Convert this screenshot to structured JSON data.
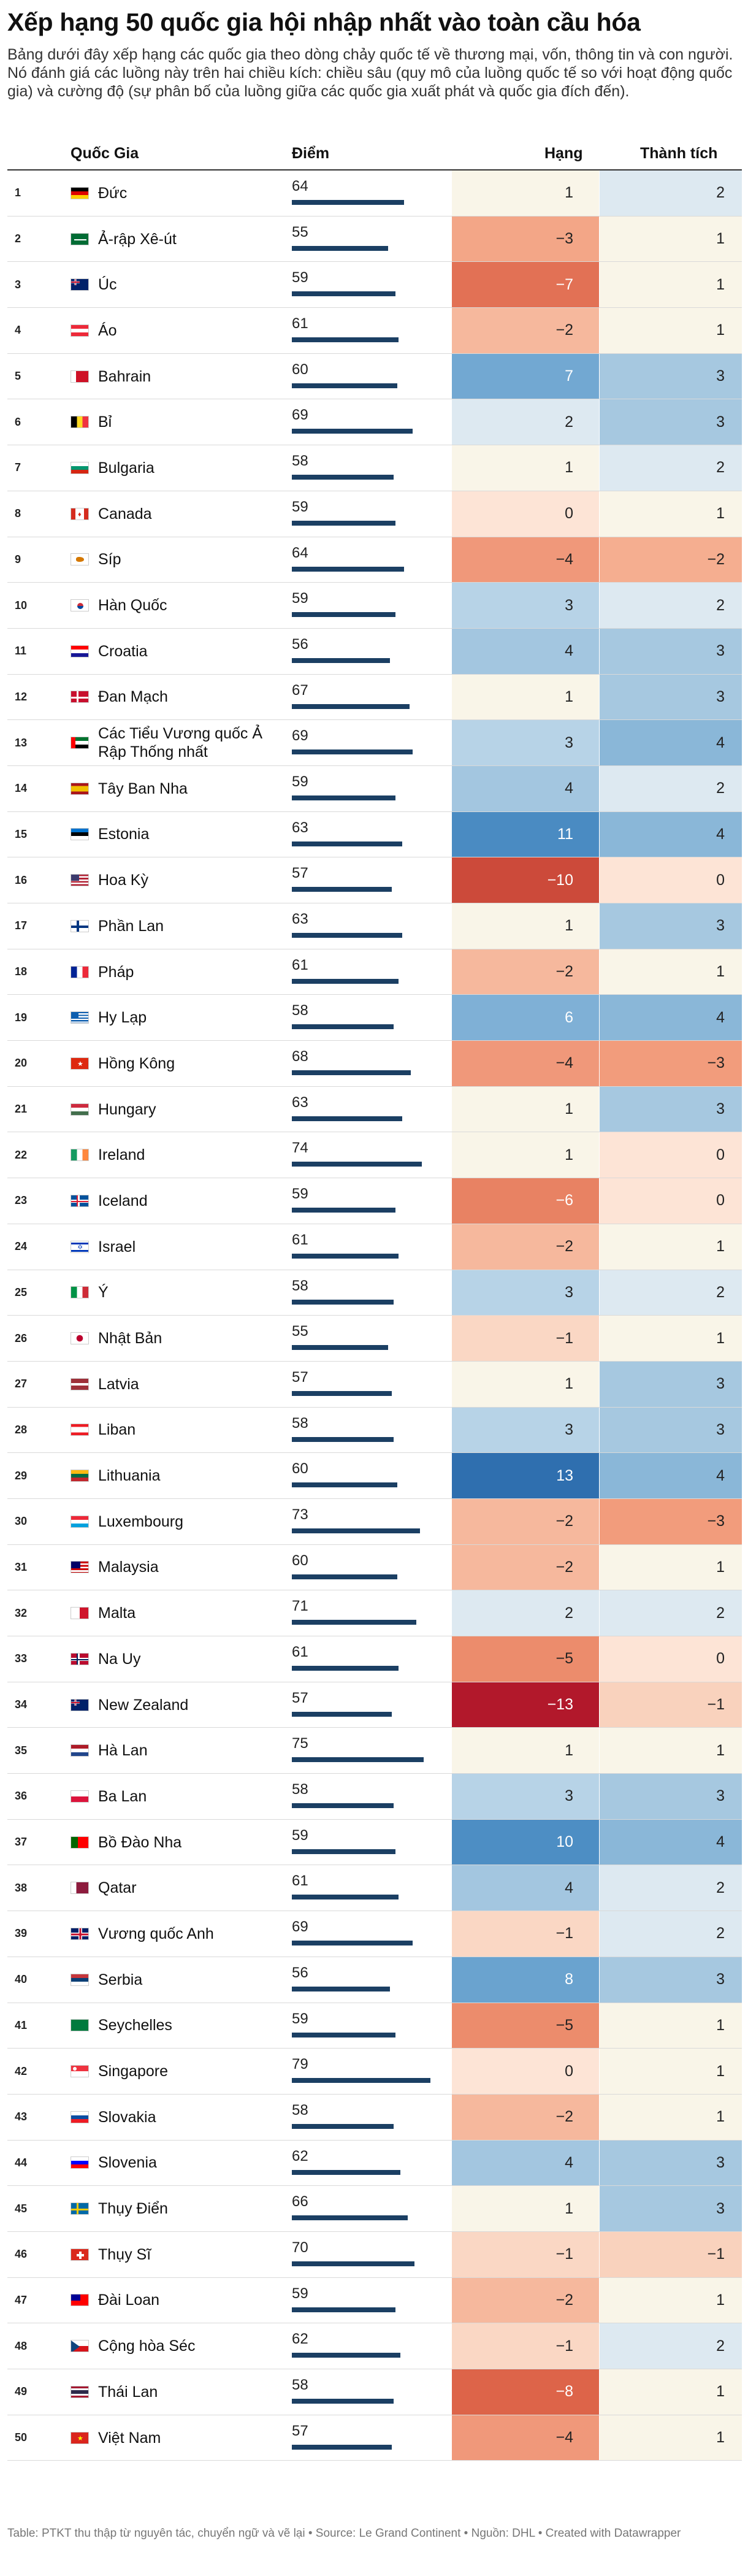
{
  "title": "Xếp hạng 50 quốc gia hội nhập nhất vào toàn cầu hóa",
  "description": "Bảng dưới đây xếp hạng các quốc gia theo dòng chảy quốc tế về thương mại, vốn, thông tin và con người. Nó đánh giá các luồng này trên hai chiều kích: chiều sâu (quy mô của luồng quốc tế so với hoạt động quốc gia) và cường độ (sự phân bố của luồng giữa các quốc gia xuất phát và quốc gia đích đến).",
  "headers": {
    "country": "Quốc Gia",
    "score": "Điểm",
    "rank_change": "Hạng",
    "achievement": "Thành tích"
  },
  "footer": "Table: PTKT thu thập từ nguyên tác, chuyển ngữ và vẽ lại • Source: Le Grand Continent • Nguồn: DHL • Created with Datawrapper",
  "colors": {
    "bar": "#1b3f63",
    "neg3": "#f2a07f",
    "neg2": "#f6b89d",
    "neg1": "#fad7c4",
    "zero": "#fde4d6",
    "pos1": "#f9f5e8",
    "pos2": "#dde9f1",
    "pos3": "#a6c8e0",
    "pos4": "#8ab7d8"
  },
  "chart_data": {
    "type": "table",
    "score_max": 100,
    "rows": [
      {
        "rank": 1,
        "country": "Đức",
        "flag": "de",
        "score": 64,
        "hang": 1,
        "thanh_tich": 2
      },
      {
        "rank": 2,
        "country": "Ả-rập Xê-út",
        "flag": "sa",
        "score": 55,
        "hang": -3,
        "thanh_tich": 1
      },
      {
        "rank": 3,
        "country": "Úc",
        "flag": "au",
        "score": 59,
        "hang": -7,
        "thanh_tich": 1
      },
      {
        "rank": 4,
        "country": "Áo",
        "flag": "at",
        "score": 61,
        "hang": -2,
        "thanh_tich": 1
      },
      {
        "rank": 5,
        "country": "Bahrain",
        "flag": "bh",
        "score": 60,
        "hang": 7,
        "thanh_tich": 3
      },
      {
        "rank": 6,
        "country": "Bỉ",
        "flag": "be",
        "score": 69,
        "hang": 2,
        "thanh_tich": 3
      },
      {
        "rank": 7,
        "country": "Bulgaria",
        "flag": "bg",
        "score": 58,
        "hang": 1,
        "thanh_tich": 2
      },
      {
        "rank": 8,
        "country": "Canada",
        "flag": "ca",
        "score": 59,
        "hang": 0,
        "thanh_tich": 1
      },
      {
        "rank": 9,
        "country": "Síp",
        "flag": "cy",
        "score": 64,
        "hang": -4,
        "thanh_tich": -2
      },
      {
        "rank": 10,
        "country": "Hàn Quốc",
        "flag": "kr",
        "score": 59,
        "hang": 3,
        "thanh_tich": 2
      },
      {
        "rank": 11,
        "country": "Croatia",
        "flag": "hr",
        "score": 56,
        "hang": 4,
        "thanh_tich": 3
      },
      {
        "rank": 12,
        "country": "Đan Mạch",
        "flag": "dk",
        "score": 67,
        "hang": 1,
        "thanh_tich": 3
      },
      {
        "rank": 13,
        "country": "Các Tiểu Vương quốc Ả Rập Thống nhất",
        "flag": "ae",
        "score": 69,
        "hang": 3,
        "thanh_tich": 4
      },
      {
        "rank": 14,
        "country": "Tây Ban Nha",
        "flag": "es",
        "score": 59,
        "hang": 4,
        "thanh_tich": 2
      },
      {
        "rank": 15,
        "country": "Estonia",
        "flag": "ee",
        "score": 63,
        "hang": 11,
        "thanh_tich": 4
      },
      {
        "rank": 16,
        "country": "Hoa Kỳ",
        "flag": "us",
        "score": 57,
        "hang": -10,
        "thanh_tich": 0
      },
      {
        "rank": 17,
        "country": "Phần Lan",
        "flag": "fi",
        "score": 63,
        "hang": 1,
        "thanh_tich": 3
      },
      {
        "rank": 18,
        "country": "Pháp",
        "flag": "fr",
        "score": 61,
        "hang": -2,
        "thanh_tich": 1
      },
      {
        "rank": 19,
        "country": "Hy Lạp",
        "flag": "gr",
        "score": 58,
        "hang": 6,
        "thanh_tich": 4
      },
      {
        "rank": 20,
        "country": "Hồng Kông",
        "flag": "hk",
        "score": 68,
        "hang": -4,
        "thanh_tich": -3
      },
      {
        "rank": 21,
        "country": "Hungary",
        "flag": "hu",
        "score": 63,
        "hang": 1,
        "thanh_tich": 3
      },
      {
        "rank": 22,
        "country": "Ireland",
        "flag": "ie",
        "score": 74,
        "hang": 1,
        "thanh_tich": 0
      },
      {
        "rank": 23,
        "country": "Iceland",
        "flag": "is",
        "score": 59,
        "hang": -6,
        "thanh_tich": 0
      },
      {
        "rank": 24,
        "country": "Israel",
        "flag": "il",
        "score": 61,
        "hang": -2,
        "thanh_tich": 1
      },
      {
        "rank": 25,
        "country": "Ý",
        "flag": "it",
        "score": 58,
        "hang": 3,
        "thanh_tich": 2
      },
      {
        "rank": 26,
        "country": "Nhật Bản",
        "flag": "jp",
        "score": 55,
        "hang": -1,
        "thanh_tich": 1
      },
      {
        "rank": 27,
        "country": "Latvia",
        "flag": "lv",
        "score": 57,
        "hang": 1,
        "thanh_tich": 3
      },
      {
        "rank": 28,
        "country": "Liban",
        "flag": "lb",
        "score": 58,
        "hang": 3,
        "thanh_tich": 3
      },
      {
        "rank": 29,
        "country": "Lithuania",
        "flag": "lt",
        "score": 60,
        "hang": 13,
        "thanh_tich": 4
      },
      {
        "rank": 30,
        "country": "Luxembourg",
        "flag": "lu",
        "score": 73,
        "hang": -2,
        "thanh_tich": -3
      },
      {
        "rank": 31,
        "country": "Malaysia",
        "flag": "my",
        "score": 60,
        "hang": -2,
        "thanh_tich": 1
      },
      {
        "rank": 32,
        "country": "Malta",
        "flag": "mt",
        "score": 71,
        "hang": 2,
        "thanh_tich": 2
      },
      {
        "rank": 33,
        "country": "Na Uy",
        "flag": "no",
        "score": 61,
        "hang": -5,
        "thanh_tich": 0
      },
      {
        "rank": 34,
        "country": "New Zealand",
        "flag": "nz",
        "score": 57,
        "hang": -13,
        "thanh_tich": -1
      },
      {
        "rank": 35,
        "country": "Hà Lan",
        "flag": "nl",
        "score": 75,
        "hang": 1,
        "thanh_tich": 1
      },
      {
        "rank": 36,
        "country": "Ba Lan",
        "flag": "pl",
        "score": 58,
        "hang": 3,
        "thanh_tich": 3
      },
      {
        "rank": 37,
        "country": "Bồ Đào Nha",
        "flag": "pt",
        "score": 59,
        "hang": 10,
        "thanh_tich": 4
      },
      {
        "rank": 38,
        "country": "Qatar",
        "flag": "qa",
        "score": 61,
        "hang": 4,
        "thanh_tich": 2
      },
      {
        "rank": 39,
        "country": "Vương quốc Anh",
        "flag": "gb",
        "score": 69,
        "hang": -1,
        "thanh_tich": 2
      },
      {
        "rank": 40,
        "country": "Serbia",
        "flag": "rs",
        "score": 56,
        "hang": 8,
        "thanh_tich": 3
      },
      {
        "rank": 41,
        "country": "Seychelles",
        "flag": "sc",
        "score": 59,
        "hang": -5,
        "thanh_tich": 1
      },
      {
        "rank": 42,
        "country": "Singapore",
        "flag": "sg",
        "score": 79,
        "hang": 0,
        "thanh_tich": 1
      },
      {
        "rank": 43,
        "country": "Slovakia",
        "flag": "sk",
        "score": 58,
        "hang": -2,
        "thanh_tich": 1
      },
      {
        "rank": 44,
        "country": "Slovenia",
        "flag": "si",
        "score": 62,
        "hang": 4,
        "thanh_tich": 3
      },
      {
        "rank": 45,
        "country": "Thụy Điển",
        "flag": "se",
        "score": 66,
        "hang": 1,
        "thanh_tich": 3
      },
      {
        "rank": 46,
        "country": "Thụy Sĩ",
        "flag": "ch",
        "score": 70,
        "hang": -1,
        "thanh_tich": -1
      },
      {
        "rank": 47,
        "country": "Đài Loan",
        "flag": "tw",
        "score": 59,
        "hang": -2,
        "thanh_tich": 1
      },
      {
        "rank": 48,
        "country": "Cộng hòa Séc",
        "flag": "cz",
        "score": 62,
        "hang": -1,
        "thanh_tich": 2
      },
      {
        "rank": 49,
        "country": "Thái Lan",
        "flag": "th",
        "score": 58,
        "hang": -8,
        "thanh_tich": 1
      },
      {
        "rank": 50,
        "country": "Việt Nam",
        "flag": "vn",
        "score": 57,
        "hang": -4,
        "thanh_tich": 1
      }
    ]
  }
}
